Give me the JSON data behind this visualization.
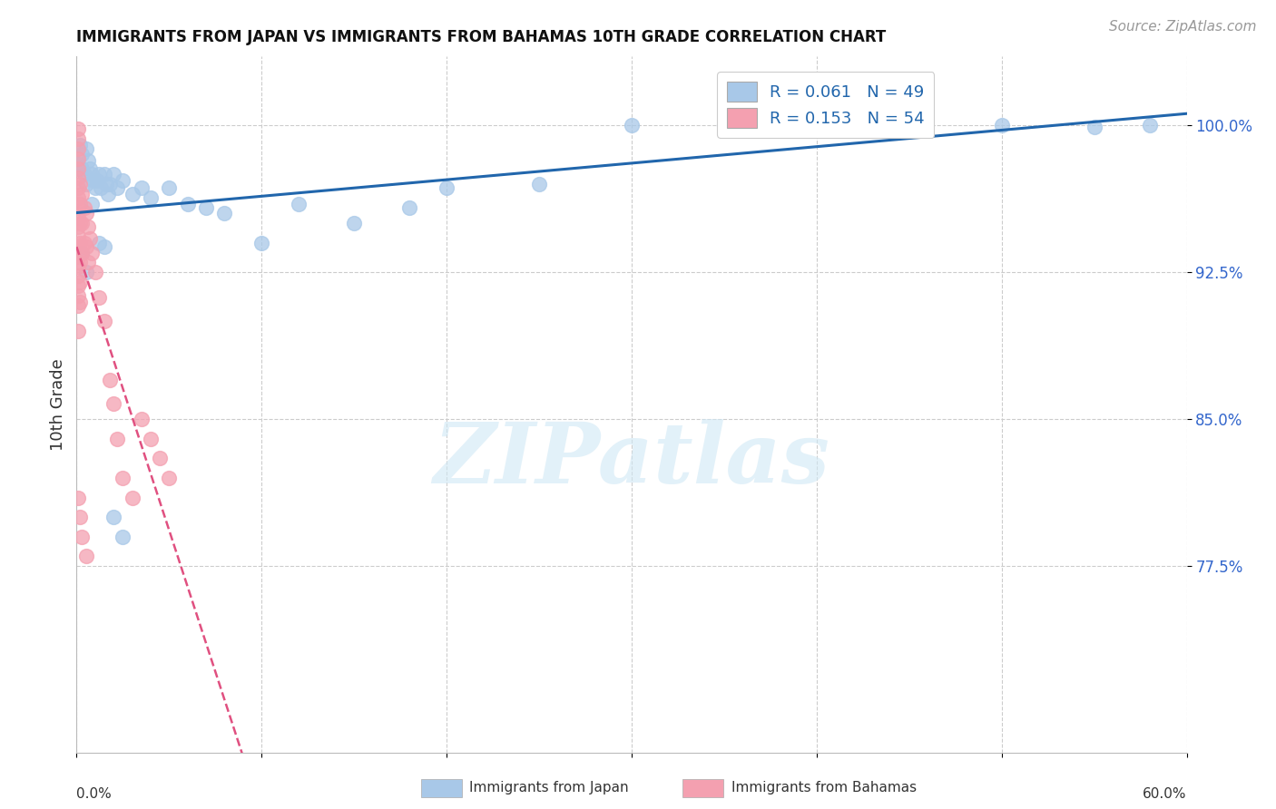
{
  "title": "IMMIGRANTS FROM JAPAN VS IMMIGRANTS FROM BAHAMAS 10TH GRADE CORRELATION CHART",
  "source": "Source: ZipAtlas.com",
  "ylabel": "10th Grade",
  "ytick_labels": [
    "77.5%",
    "85.0%",
    "92.5%",
    "100.0%"
  ],
  "ytick_values": [
    0.775,
    0.85,
    0.925,
    1.0
  ],
  "xlim": [
    0.0,
    0.6
  ],
  "ylim": [
    0.68,
    1.035
  ],
  "color_japan": "#a8c8e8",
  "color_bahamas": "#f4a0b0",
  "trendline_japan_color": "#2166ac",
  "trendline_bahamas_color": "#e05080",
  "watermark_text": "ZIPatlas",
  "japan_x": [
    0.001,
    0.002,
    0.003,
    0.003,
    0.004,
    0.005,
    0.005,
    0.006,
    0.007,
    0.008,
    0.009,
    0.01,
    0.011,
    0.012,
    0.013,
    0.015,
    0.016,
    0.017,
    0.018,
    0.02,
    0.022,
    0.025,
    0.03,
    0.035,
    0.04,
    0.05,
    0.06,
    0.07,
    0.08,
    0.1,
    0.12,
    0.15,
    0.18,
    0.2,
    0.25,
    0.3,
    0.35,
    0.4,
    0.45,
    0.5,
    0.55,
    0.58,
    0.003,
    0.005,
    0.008,
    0.012,
    0.015,
    0.02,
    0.025
  ],
  "japan_y": [
    0.98,
    0.99,
    0.985,
    0.978,
    0.975,
    0.988,
    0.97,
    0.982,
    0.978,
    0.975,
    0.972,
    0.968,
    0.972,
    0.975,
    0.968,
    0.975,
    0.97,
    0.965,
    0.97,
    0.975,
    0.968,
    0.972,
    0.965,
    0.968,
    0.963,
    0.968,
    0.96,
    0.958,
    0.955,
    0.94,
    0.96,
    0.95,
    0.958,
    0.968,
    0.97,
    1.0,
    1.0,
    1.0,
    0.997,
    1.0,
    0.999,
    1.0,
    0.935,
    0.925,
    0.96,
    0.94,
    0.938,
    0.8,
    0.79
  ],
  "bahamas_x": [
    0.001,
    0.001,
    0.001,
    0.001,
    0.001,
    0.001,
    0.001,
    0.001,
    0.001,
    0.001,
    0.001,
    0.001,
    0.001,
    0.001,
    0.001,
    0.001,
    0.001,
    0.001,
    0.001,
    0.001,
    0.002,
    0.002,
    0.002,
    0.002,
    0.002,
    0.002,
    0.002,
    0.003,
    0.003,
    0.003,
    0.004,
    0.004,
    0.005,
    0.005,
    0.006,
    0.006,
    0.007,
    0.008,
    0.01,
    0.012,
    0.015,
    0.018,
    0.02,
    0.022,
    0.025,
    0.03,
    0.035,
    0.04,
    0.045,
    0.05,
    0.001,
    0.002,
    0.003,
    0.005
  ],
  "bahamas_y": [
    0.998,
    0.993,
    0.988,
    0.983,
    0.978,
    0.973,
    0.968,
    0.963,
    0.958,
    0.953,
    0.948,
    0.943,
    0.938,
    0.933,
    0.928,
    0.923,
    0.918,
    0.913,
    0.908,
    0.895,
    0.97,
    0.96,
    0.95,
    0.94,
    0.93,
    0.92,
    0.91,
    0.965,
    0.95,
    0.935,
    0.958,
    0.94,
    0.955,
    0.938,
    0.948,
    0.93,
    0.942,
    0.935,
    0.925,
    0.912,
    0.9,
    0.87,
    0.858,
    0.84,
    0.82,
    0.81,
    0.85,
    0.84,
    0.83,
    0.82,
    0.81,
    0.8,
    0.79,
    0.78
  ]
}
